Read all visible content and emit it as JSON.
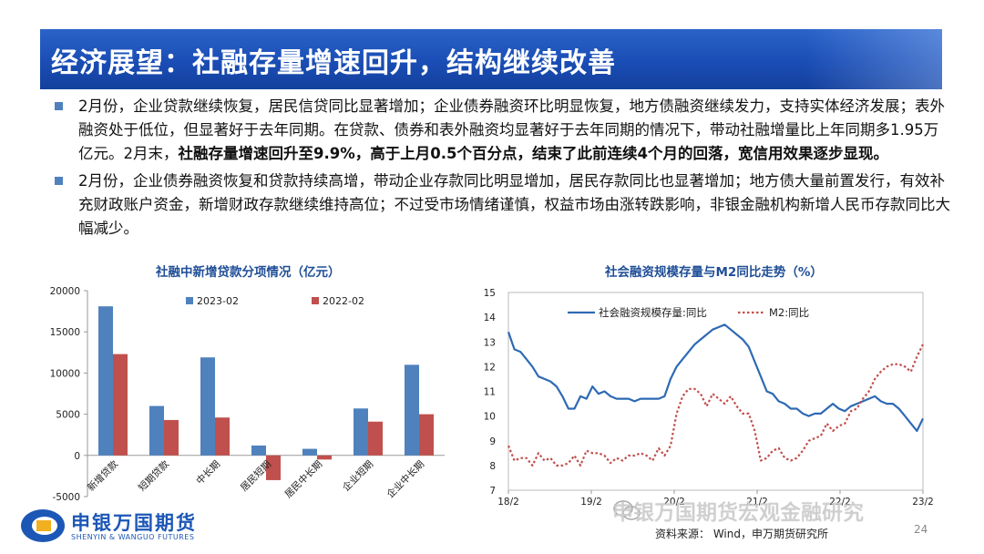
{
  "slide": {
    "title": "经济展望：社融存量增速回升，结构继续改善",
    "page_number": "24",
    "source": "资料来源： Wind，申万期货研究所",
    "watermark": "申银万国期货宏观金融研究",
    "colors": {
      "title_band": "#1a4db5",
      "chart_title": "#1f4e96",
      "bullet": "#4f81bd",
      "series_2023": "#4f81bd",
      "series_2022": "#c0504d",
      "line_solid": "#2e6ab4",
      "line_dotted": "#c0504d"
    }
  },
  "bullets": [
    {
      "normal": "2月份，企业贷款继续恢复，居民信贷同比显著增加；企业债券融资环比明显恢复，地方债融资继续发力，支持实体经济发展；表外融资处于低位，但显著好于去年同期。在贷款、债券和表外融资均显著好于去年同期的情况下，带动社融增量比上年同期多1.95万亿元。2月末，",
      "bold": "社融存量增速回升至9.9%，高于上月0.5个百分点，结束了此前连续4个月的回落，宽信用效果逐步显现。"
    },
    {
      "normal": "2月份，企业债券融资恢复和贷款持续高增，带动企业存款同比明显增加，居民存款同比也显著增加；地方债大量前置发行，有效补充财政账户资金，新增财政存款继续维持高位；不过受市场情绪谨慎，权益市场由涨转跌影响，非银金融机构新增人民币存款同比大幅减少。",
      "bold": ""
    }
  ],
  "logo": {
    "name": "申银万国期货",
    "sub": "SHENYIN & WANGUO FUTURES"
  },
  "chart_data": [
    {
      "type": "bar",
      "title": "社融中新增贷款分项情况（亿元）",
      "categories": [
        "新增贷款",
        "短期贷款",
        "中长期",
        "居民短期",
        "居民中长期",
        "企业短期",
        "企业中长期"
      ],
      "series": [
        {
          "name": "2023-02",
          "values": [
            18100,
            6000,
            11900,
            1200,
            800,
            5700,
            11000
          ]
        },
        {
          "name": "2022-02",
          "values": [
            12300,
            4300,
            4600,
            -3000,
            -500,
            4100,
            5000
          ]
        }
      ],
      "ylim": [
        -5000,
        20000
      ],
      "yticks": [
        "20000",
        "15000",
        "10000",
        "5000",
        "0",
        "-5000"
      ],
      "legend": "top"
    },
    {
      "type": "line",
      "title": "社会融资规模存量与M2同比走势（%）",
      "ylim": [
        7,
        15
      ],
      "yticks": [
        "15",
        "14",
        "13",
        "12",
        "11",
        "10",
        "9",
        "8",
        "7"
      ],
      "xticks": [
        "18/2",
        "19/2",
        "20/2",
        "21/2",
        "22/2",
        "23/2"
      ],
      "x_range": [
        "2018-02",
        "2023-02"
      ],
      "legend": "top",
      "series": [
        {
          "name": "社会融资规模存量:同比",
          "style": "solid",
          "values": [
            13.4,
            12.7,
            12.6,
            12.3,
            12.0,
            11.6,
            11.5,
            11.4,
            11.2,
            10.8,
            10.3,
            10.3,
            10.8,
            10.7,
            11.2,
            10.9,
            11.0,
            10.8,
            10.7,
            10.7,
            10.7,
            10.6,
            10.7,
            10.7,
            10.7,
            10.7,
            10.8,
            11.5,
            12.0,
            12.3,
            12.6,
            12.9,
            13.1,
            13.3,
            13.5,
            13.6,
            13.7,
            13.5,
            13.3,
            13.1,
            12.8,
            12.2,
            11.6,
            11.0,
            10.9,
            10.6,
            10.5,
            10.3,
            10.3,
            10.1,
            10.0,
            10.1,
            10.1,
            10.3,
            10.5,
            10.3,
            10.2,
            10.4,
            10.5,
            10.6,
            10.7,
            10.8,
            10.6,
            10.5,
            10.5,
            10.3,
            10.0,
            9.7,
            9.4,
            9.9
          ]
        },
        {
          "name": "M2:同比",
          "style": "dotted",
          "values": [
            8.8,
            8.2,
            8.3,
            8.3,
            8.0,
            8.5,
            8.2,
            8.3,
            8.0,
            8.0,
            8.1,
            8.4,
            8.0,
            8.6,
            8.5,
            8.5,
            8.4,
            8.1,
            8.3,
            8.2,
            8.4,
            8.4,
            8.5,
            8.4,
            8.2,
            8.7,
            8.4,
            8.8,
            10.1,
            10.8,
            11.1,
            11.1,
            10.9,
            10.4,
            10.9,
            10.7,
            10.5,
            10.8,
            10.4,
            10.1,
            10.1,
            9.4,
            8.2,
            8.3,
            8.6,
            8.7,
            8.3,
            8.2,
            8.3,
            8.6,
            9.0,
            9.1,
            9.2,
            9.7,
            9.4,
            9.6,
            9.7,
            10.2,
            10.3,
            10.7,
            11.0,
            11.5,
            11.8,
            12.0,
            12.1,
            12.1,
            12.0,
            11.8,
            12.4,
            12.9
          ]
        }
      ]
    }
  ]
}
